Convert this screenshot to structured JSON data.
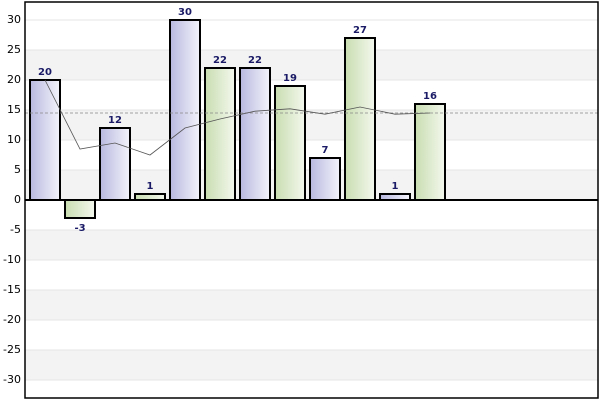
{
  "chart_data": {
    "type": "bar",
    "categories": [
      null,
      null,
      null,
      null,
      null,
      null,
      null,
      null,
      null,
      null,
      null,
      null
    ],
    "series": [
      {
        "colors": [
          "#b8b8e0",
          "#c8ddb0"
        ],
        "values": [
          20,
          -3,
          12,
          1,
          30,
          22,
          22,
          19,
          7,
          27,
          1,
          16
        ]
      }
    ],
    "trend": {
      "color": "#555555",
      "values": [
        20,
        8.5,
        9.5,
        7.5,
        12,
        13.5,
        14.8,
        15.2,
        14.3,
        15.5,
        14.3,
        14.5
      ]
    },
    "reference": {
      "color": "#888888",
      "value": 14.5
    },
    "ylim": [
      -33,
      33
    ],
    "yticks": [
      -30,
      -25,
      -20,
      -15,
      -10,
      -5,
      0,
      5,
      10,
      15,
      20,
      25,
      30
    ],
    "grid": true
  }
}
